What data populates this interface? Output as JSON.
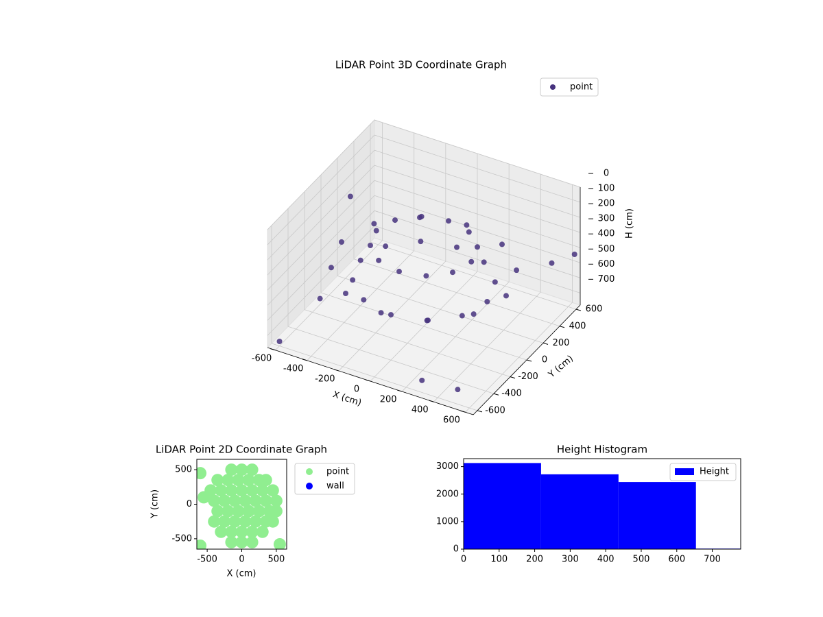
{
  "chart_data": [
    {
      "type": "scatter3d",
      "title": "LiDAR Point 3D Coordinate Graph",
      "xlabel": "X (cm)",
      "ylabel": "Y (cm)",
      "zlabel": "H (cm)",
      "xlim": [
        -650,
        650
      ],
      "ylim": [
        -650,
        650
      ],
      "zlim": [
        780,
        0
      ],
      "xticks": [
        -600,
        -400,
        -200,
        0,
        200,
        400,
        600
      ],
      "yticks": [
        -600,
        -400,
        -200,
        0,
        200,
        400,
        600
      ],
      "zticks": [
        0,
        100,
        200,
        300,
        400,
        500,
        600,
        700
      ],
      "grid": true,
      "legend": "upper right",
      "series": [
        {
          "name": "point",
          "color": "#46327e",
          "x": [
            520,
            450,
            260,
            0,
            -260,
            -450,
            -520,
            -450,
            -260,
            0,
            260,
            450,
            400,
            346,
            200,
            0,
            -200,
            -346,
            -400,
            -346,
            -200,
            0,
            200,
            346,
            300,
            260,
            150,
            0,
            -150,
            -260,
            -300,
            -260,
            -150,
            0,
            150,
            260,
            -600,
            500,
            600,
            -620,
            640,
            -500,
            300
          ],
          "y": [
            0,
            260,
            450,
            520,
            450,
            260,
            0,
            -260,
            -450,
            -520,
            -450,
            -260,
            0,
            200,
            346,
            400,
            346,
            200,
            0,
            -200,
            -346,
            -400,
            -346,
            -200,
            0,
            150,
            260,
            300,
            260,
            150,
            0,
            -150,
            -260,
            -300,
            -260,
            -150,
            -600,
            -550,
            400,
            300,
            600,
            -300,
            -600
          ],
          "z": [
            400,
            400,
            400,
            400,
            400,
            400,
            400,
            400,
            400,
            400,
            400,
            400,
            480,
            480,
            480,
            480,
            480,
            480,
            480,
            480,
            480,
            480,
            480,
            480,
            250,
            250,
            250,
            250,
            250,
            250,
            250,
            250,
            250,
            250,
            250,
            250,
            750,
            720,
            380,
            300,
            420,
            600,
            700
          ]
        }
      ]
    },
    {
      "type": "scatter",
      "title": "LiDAR Point 2D Coordinate Graph",
      "xlabel": "X (cm)",
      "ylabel": "Y (cm)",
      "xlim": [
        -650,
        650
      ],
      "ylim": [
        -650,
        650
      ],
      "xticks": [
        -500,
        0,
        500
      ],
      "yticks": [
        -500,
        0,
        500
      ],
      "legend": "outside right",
      "series": [
        {
          "name": "point",
          "color": "#90ee90",
          "x": [
            -150,
            0,
            150,
            -350,
            -200,
            -50,
            100,
            250,
            350,
            -450,
            -300,
            -150,
            0,
            150,
            300,
            450,
            -400,
            -250,
            -100,
            50,
            200,
            350,
            500,
            -350,
            -200,
            -50,
            100,
            250,
            400,
            500,
            -400,
            -250,
            -100,
            50,
            200,
            350,
            450,
            -300,
            -150,
            0,
            150,
            300,
            -150,
            0,
            150,
            -600,
            -600,
            550,
            -550
          ],
          "y": [
            500,
            500,
            500,
            350,
            350,
            350,
            350,
            350,
            350,
            200,
            200,
            200,
            200,
            200,
            200,
            200,
            50,
            50,
            50,
            50,
            50,
            50,
            50,
            -100,
            -100,
            -100,
            -100,
            -100,
            -100,
            -100,
            -250,
            -250,
            -250,
            -250,
            -250,
            -250,
            -250,
            -400,
            -400,
            -400,
            -400,
            -400,
            -550,
            -550,
            -550,
            450,
            -600,
            -580,
            100
          ]
        },
        {
          "name": "wall",
          "color": "#0000ff",
          "x": [],
          "y": []
        }
      ]
    },
    {
      "type": "histogram",
      "title": "Height Histogram",
      "label": "Height",
      "color": "#0000ff",
      "bins": [
        0,
        218,
        436,
        654,
        872
      ],
      "counts": [
        3130,
        2720,
        2440,
        20
      ],
      "xlim": [
        0,
        780
      ],
      "ylim": [
        0,
        3290
      ],
      "xticks": [
        0,
        100,
        200,
        300,
        400,
        500,
        600,
        700
      ],
      "yticks": [
        0,
        1000,
        2000,
        3000
      ],
      "legend": "upper right"
    }
  ]
}
